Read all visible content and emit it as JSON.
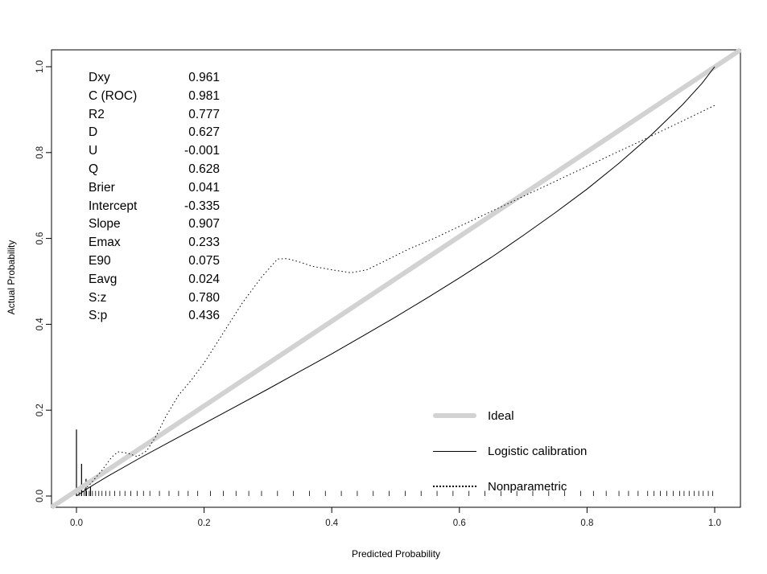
{
  "chart_data": {
    "type": "line",
    "title": "",
    "xlabel": "Predicted Probability",
    "ylabel": "Actual Probability",
    "xlim": [
      0.0,
      1.0
    ],
    "ylim": [
      0.0,
      1.0
    ],
    "xticks": [
      "0.0",
      "0.2",
      "0.4",
      "0.6",
      "0.8",
      "1.0"
    ],
    "yticks": [
      "0.0",
      "0.2",
      "0.4",
      "0.6",
      "0.8",
      "1.0"
    ],
    "grid": false,
    "stats": [
      {
        "name": "Dxy",
        "value": "0.961"
      },
      {
        "name": "C (ROC)",
        "value": "0.981"
      },
      {
        "name": "R2",
        "value": "0.777"
      },
      {
        "name": "D",
        "value": "0.627"
      },
      {
        "name": "U",
        "value": "-0.001"
      },
      {
        "name": "Q",
        "value": "0.628"
      },
      {
        "name": "Brier",
        "value": "0.041"
      },
      {
        "name": "Intercept",
        "value": "-0.335"
      },
      {
        "name": "Slope",
        "value": "0.907"
      },
      {
        "name": "Emax",
        "value": "0.233"
      },
      {
        "name": "E90",
        "value": "0.075"
      },
      {
        "name": "Eavg",
        "value": "0.024"
      },
      {
        "name": "S:z",
        "value": "0.780"
      },
      {
        "name": "S:p",
        "value": "0.436"
      }
    ],
    "legend": {
      "position": "inside-bottom-right",
      "entries": [
        {
          "label": "Ideal",
          "style": "thick-solid",
          "color": "#d2d2d2"
        },
        {
          "label": "Logistic calibration",
          "style": "solid",
          "color": "#000000"
        },
        {
          "label": "Nonparametric",
          "style": "dotted",
          "color": "#000000"
        }
      ]
    },
    "series": [
      {
        "name": "Ideal",
        "style": "thick-solid",
        "color": "#d2d2d2",
        "width": 6,
        "extend_to_box": true,
        "points": [
          [
            0.0,
            0.0
          ],
          [
            1.0,
            1.0
          ]
        ]
      },
      {
        "name": "Logistic calibration",
        "style": "solid",
        "color": "#000000",
        "width": 1,
        "points": [
          [
            0.0,
            0.0
          ],
          [
            0.02,
            0.02
          ],
          [
            0.05,
            0.047
          ],
          [
            0.1,
            0.089
          ],
          [
            0.15,
            0.129
          ],
          [
            0.2,
            0.169
          ],
          [
            0.25,
            0.209
          ],
          [
            0.3,
            0.249
          ],
          [
            0.35,
            0.29
          ],
          [
            0.4,
            0.331
          ],
          [
            0.45,
            0.374
          ],
          [
            0.5,
            0.417
          ],
          [
            0.55,
            0.462
          ],
          [
            0.6,
            0.508
          ],
          [
            0.65,
            0.556
          ],
          [
            0.7,
            0.607
          ],
          [
            0.75,
            0.66
          ],
          [
            0.8,
            0.715
          ],
          [
            0.85,
            0.775
          ],
          [
            0.9,
            0.84
          ],
          [
            0.95,
            0.912
          ],
          [
            0.98,
            0.961
          ],
          [
            1.0,
            1.0
          ]
        ]
      },
      {
        "name": "Nonparametric",
        "style": "dotted",
        "color": "#000000",
        "width": 1,
        "points": [
          [
            0.004,
            0.004
          ],
          [
            0.02,
            0.025
          ],
          [
            0.04,
            0.06
          ],
          [
            0.055,
            0.09
          ],
          [
            0.065,
            0.103
          ],
          [
            0.08,
            0.1
          ],
          [
            0.095,
            0.092
          ],
          [
            0.11,
            0.105
          ],
          [
            0.125,
            0.14
          ],
          [
            0.14,
            0.185
          ],
          [
            0.16,
            0.235
          ],
          [
            0.18,
            0.27
          ],
          [
            0.2,
            0.31
          ],
          [
            0.23,
            0.38
          ],
          [
            0.26,
            0.45
          ],
          [
            0.29,
            0.51
          ],
          [
            0.315,
            0.552
          ],
          [
            0.33,
            0.553
          ],
          [
            0.35,
            0.545
          ],
          [
            0.37,
            0.535
          ],
          [
            0.4,
            0.527
          ],
          [
            0.43,
            0.52
          ],
          [
            0.455,
            0.527
          ],
          [
            0.48,
            0.545
          ],
          [
            0.52,
            0.575
          ],
          [
            0.56,
            0.6
          ],
          [
            0.6,
            0.628
          ],
          [
            0.65,
            0.663
          ],
          [
            0.7,
            0.698
          ],
          [
            0.75,
            0.733
          ],
          [
            0.8,
            0.768
          ],
          [
            0.85,
            0.803
          ],
          [
            0.9,
            0.838
          ],
          [
            0.95,
            0.874
          ],
          [
            1.0,
            0.91
          ]
        ]
      }
    ],
    "rug": {
      "tick_height": 0.012,
      "spikes": [
        {
          "x": 0.0,
          "h": 0.155
        },
        {
          "x": 0.008,
          "h": 0.075
        },
        {
          "x": 0.015,
          "h": 0.04
        },
        {
          "x": 0.022,
          "h": 0.022
        }
      ],
      "ticks_x": [
        0.004,
        0.008,
        0.012,
        0.016,
        0.02,
        0.025,
        0.03,
        0.035,
        0.04,
        0.046,
        0.052,
        0.06,
        0.068,
        0.076,
        0.085,
        0.095,
        0.105,
        0.115,
        0.13,
        0.145,
        0.16,
        0.175,
        0.19,
        0.21,
        0.23,
        0.25,
        0.27,
        0.29,
        0.315,
        0.34,
        0.365,
        0.39,
        0.415,
        0.44,
        0.465,
        0.49,
        0.515,
        0.54,
        0.565,
        0.59,
        0.615,
        0.64,
        0.665,
        0.69,
        0.715,
        0.74,
        0.765,
        0.79,
        0.81,
        0.83,
        0.85,
        0.865,
        0.88,
        0.895,
        0.905,
        0.915,
        0.925,
        0.935,
        0.945,
        0.952,
        0.96,
        0.968,
        0.975,
        0.982,
        0.99,
        0.997
      ]
    }
  }
}
